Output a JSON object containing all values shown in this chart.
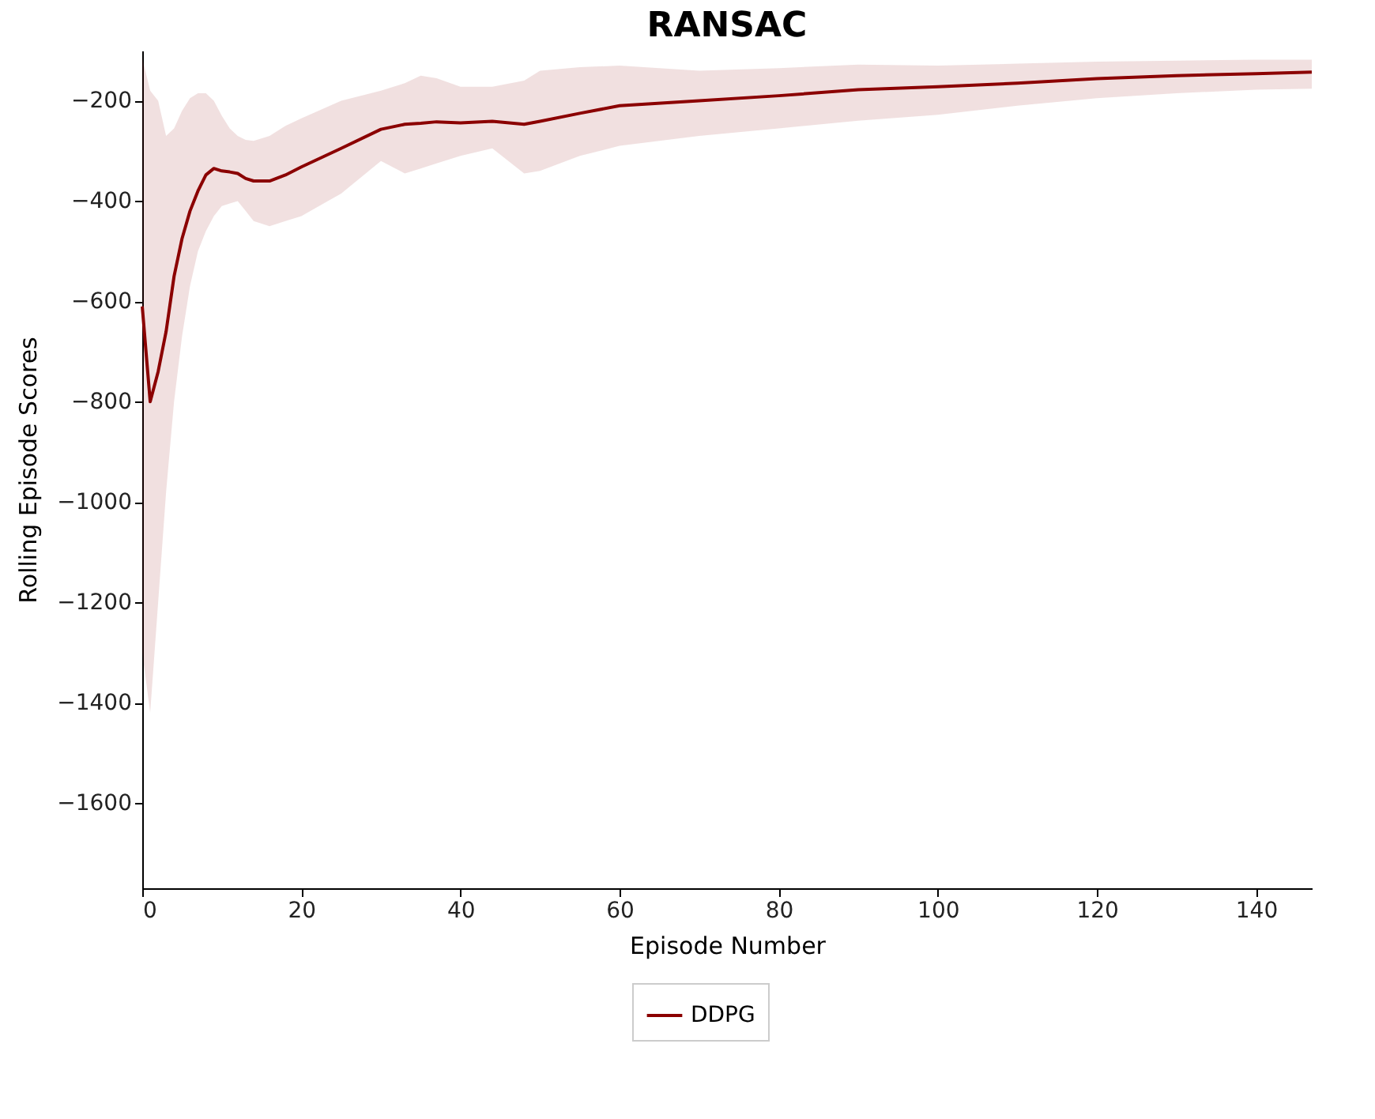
{
  "chart_data": {
    "type": "line",
    "title": "RANSAC",
    "xlabel": "Episode Number",
    "ylabel": "Rolling Episode Scores",
    "x": [
      0,
      1,
      2,
      3,
      4,
      5,
      6,
      7,
      8,
      9,
      10,
      11,
      12,
      13,
      14,
      16,
      18,
      20,
      25,
      30,
      33,
      35,
      37,
      40,
      44,
      48,
      50,
      55,
      60,
      70,
      80,
      90,
      100,
      110,
      120,
      130,
      140,
      147
    ],
    "series": [
      {
        "name": "DDPG",
        "color": "#8b0000",
        "values": [
          -610,
          -800,
          -740,
          -660,
          -550,
          -475,
          -420,
          -380,
          -348,
          -335,
          -340,
          -342,
          -345,
          -355,
          -360,
          -360,
          -348,
          -332,
          -295,
          -257,
          -247,
          -245,
          -242,
          -244,
          -241,
          -247,
          -241,
          -225,
          -210,
          -200,
          -190,
          -178,
          -172,
          -165,
          -156,
          -150,
          -146,
          -143
        ],
        "upper": [
          -115,
          -180,
          -200,
          -270,
          -255,
          -220,
          -195,
          -185,
          -185,
          -200,
          -230,
          -255,
          -270,
          -278,
          -280,
          -270,
          -250,
          -235,
          -200,
          -180,
          -165,
          -150,
          -155,
          -172,
          -172,
          -160,
          -140,
          -133,
          -130,
          -140,
          -135,
          -128,
          -130,
          -126,
          -122,
          -120,
          -118,
          -118
        ],
        "lower": [
          -1300,
          -1420,
          -1200,
          -980,
          -800,
          -670,
          -570,
          -500,
          -460,
          -430,
          -410,
          -405,
          -400,
          -420,
          -440,
          -450,
          -440,
          -430,
          -385,
          -320,
          -345,
          -335,
          -325,
          -310,
          -295,
          -345,
          -340,
          -310,
          -290,
          -270,
          -255,
          -240,
          -228,
          -210,
          -195,
          -185,
          -178,
          -176
        ]
      }
    ],
    "xlim": [
      0,
      147
    ],
    "xticks": [
      0,
      20,
      40,
      60,
      80,
      100,
      120,
      140
    ],
    "ylim": [
      -1770,
      -100
    ],
    "yticks": [
      -1600,
      -1400,
      -1200,
      -1000,
      -800,
      -600,
      -400,
      -200
    ],
    "grid": false,
    "legend": "bottom",
    "line_style": "solid",
    "marker": "none"
  }
}
